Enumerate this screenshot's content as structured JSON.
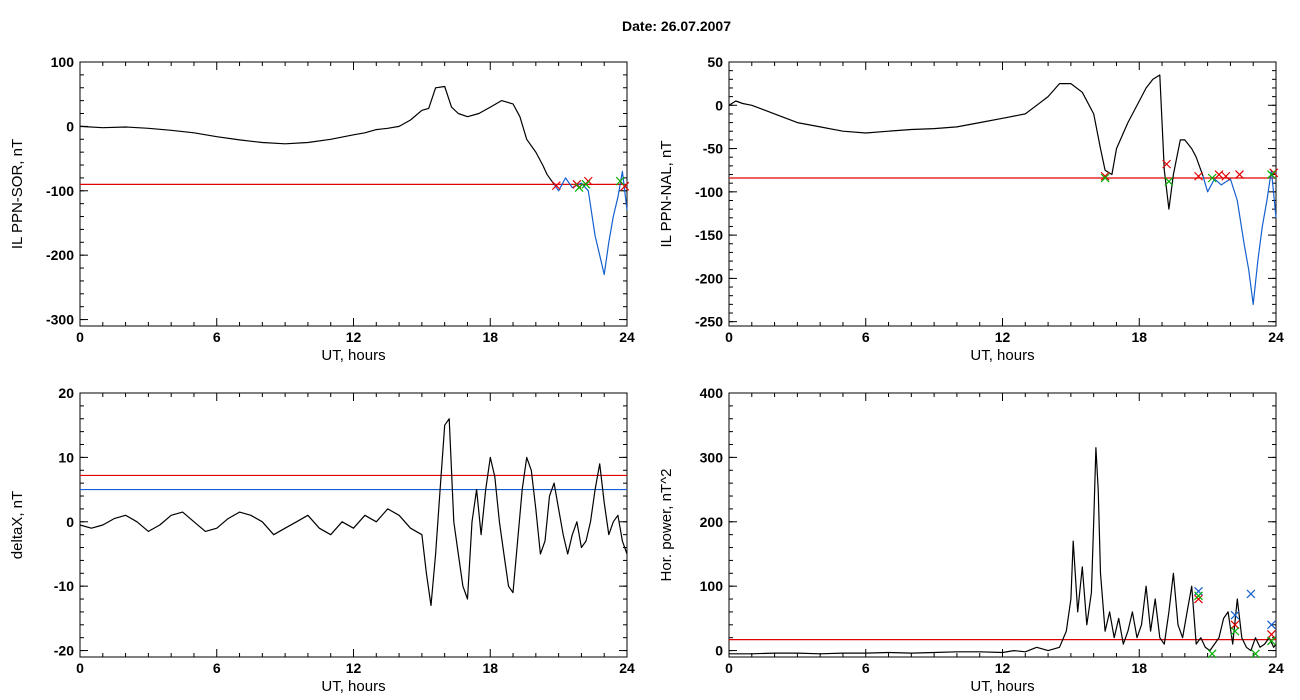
{
  "page": {
    "title": "Date:  26.07.2007"
  },
  "chart_data": [
    {
      "id": "sor",
      "type": "line",
      "xlabel": "UT, hours",
      "ylabel": "IL PPN-SOR, nT",
      "xlim": [
        0,
        24
      ],
      "ylim": [
        -310,
        100
      ],
      "xticks": [
        0,
        6,
        12,
        18,
        24
      ],
      "yticks": [
        -300,
        -200,
        -100,
        0,
        100
      ],
      "hlines": [
        {
          "y": -90,
          "color": "#e00000"
        }
      ],
      "series": [
        {
          "color": "#000000",
          "x": [
            0,
            1,
            2,
            3,
            4,
            5,
            6,
            7,
            8,
            9,
            10,
            11,
            12,
            12.5,
            13,
            13.5,
            14,
            14.5,
            15,
            15.3,
            15.6,
            16,
            16.3,
            16.6,
            17,
            17.5,
            18,
            18.5,
            19,
            19.3,
            19.6,
            20,
            20.3,
            20.5,
            20.8
          ],
          "y": [
            0,
            -2,
            -1,
            -3,
            -6,
            -10,
            -16,
            -21,
            -25,
            -27,
            -25,
            -20,
            -13,
            -10,
            -5,
            -3,
            0,
            10,
            25,
            28,
            60,
            62,
            30,
            20,
            15,
            20,
            30,
            40,
            35,
            15,
            -20,
            -40,
            -60,
            -75,
            -90
          ]
        },
        {
          "color": "#1560d0",
          "x": [
            20.8,
            21,
            21.3,
            21.6,
            22,
            22.3,
            22.6,
            22.8,
            23,
            23.2,
            23.4,
            23.6,
            23.8,
            24
          ],
          "y": [
            -90,
            -100,
            -80,
            -95,
            -88,
            -100,
            -170,
            -200,
            -230,
            -180,
            -140,
            -110,
            -70,
            -130
          ]
        }
      ],
      "markers": [
        {
          "symbol": "x",
          "color": "#e00000",
          "points": [
            [
              20.9,
              -92
            ],
            [
              21.8,
              -90
            ],
            [
              22.3,
              -85
            ],
            [
              23.9,
              -93
            ]
          ]
        },
        {
          "symbol": "x",
          "color": "#00b000",
          "points": [
            [
              21.9,
              -95
            ],
            [
              22.2,
              -90
            ],
            [
              23.7,
              -85
            ]
          ]
        }
      ]
    },
    {
      "id": "nal",
      "type": "line",
      "xlabel": "UT, hours",
      "ylabel": "IL PPN-NAL, nT",
      "xlim": [
        0,
        24
      ],
      "ylim": [
        -255,
        50
      ],
      "xticks": [
        0,
        6,
        12,
        18,
        24
      ],
      "yticks": [
        -250,
        -200,
        -150,
        -100,
        -50,
        0,
        50
      ],
      "hlines": [
        {
          "y": -84,
          "color": "#e00000"
        }
      ],
      "series": [
        {
          "color": "#000000",
          "x": [
            0,
            0.3,
            0.6,
            1,
            1.5,
            2,
            3,
            4,
            5,
            6,
            7,
            8,
            9,
            10,
            11,
            12,
            13,
            13.5,
            14,
            14.5,
            15,
            15.5,
            16,
            16.3,
            16.5,
            16.8,
            17,
            17.5,
            18,
            18.3,
            18.6,
            18.9,
            19.1,
            19.3,
            19.5,
            19.8,
            20,
            20.3,
            20.5,
            20.8
          ],
          "y": [
            0,
            5,
            2,
            0,
            -5,
            -10,
            -20,
            -25,
            -30,
            -32,
            -30,
            -28,
            -27,
            -25,
            -20,
            -15,
            -10,
            0,
            10,
            25,
            25,
            15,
            -10,
            -50,
            -75,
            -80,
            -50,
            -20,
            5,
            20,
            30,
            35,
            -75,
            -120,
            -80,
            -40,
            -40,
            -50,
            -60,
            -82
          ]
        },
        {
          "color": "#1560d0",
          "x": [
            20.8,
            21,
            21.3,
            21.6,
            22,
            22.3,
            22.6,
            22.8,
            23,
            23.2,
            23.4,
            23.6,
            23.8,
            24
          ],
          "y": [
            -82,
            -100,
            -85,
            -92,
            -85,
            -110,
            -160,
            -190,
            -230,
            -180,
            -140,
            -110,
            -75,
            -130
          ]
        }
      ],
      "markers": [
        {
          "symbol": "x",
          "color": "#e00000",
          "points": [
            [
              16.5,
              -82
            ],
            [
              19.2,
              -68
            ],
            [
              20.6,
              -82
            ],
            [
              21.5,
              -80
            ],
            [
              21.8,
              -82
            ],
            [
              22.4,
              -80
            ],
            [
              23.9,
              -78
            ]
          ]
        },
        {
          "symbol": "x",
          "color": "#00b000",
          "points": [
            [
              16.5,
              -84
            ],
            [
              19.3,
              -88
            ],
            [
              21.2,
              -84
            ],
            [
              23.8,
              -80
            ]
          ]
        }
      ]
    },
    {
      "id": "deltax",
      "type": "line",
      "xlabel": "UT, hours",
      "ylabel": "deltaX, nT",
      "xlim": [
        0,
        24
      ],
      "ylim": [
        -21,
        20
      ],
      "xticks": [
        0,
        6,
        12,
        18,
        24
      ],
      "yticks": [
        -20,
        -10,
        0,
        10,
        20
      ],
      "hlines": [
        {
          "y": 7.2,
          "color": "#e00000"
        },
        {
          "y": 5,
          "color": "#1560d0"
        }
      ],
      "series": [
        {
          "color": "#000000",
          "x": [
            0,
            0.5,
            1,
            1.5,
            2,
            2.5,
            3,
            3.5,
            4,
            4.5,
            5,
            5.5,
            6,
            6.5,
            7,
            7.5,
            8,
            8.5,
            9,
            9.5,
            10,
            10.5,
            11,
            11.5,
            12,
            12.5,
            13,
            13.5,
            14,
            14.5,
            15,
            15.2,
            15.4,
            15.6,
            15.8,
            16,
            16.2,
            16.4,
            16.6,
            16.8,
            17,
            17.2,
            17.4,
            17.6,
            17.8,
            18,
            18.2,
            18.4,
            18.6,
            18.8,
            19,
            19.2,
            19.4,
            19.6,
            19.8,
            20,
            20.2,
            20.4,
            20.6,
            20.8,
            21,
            21.2,
            21.4,
            21.6,
            21.8,
            22,
            22.2,
            22.4,
            22.6,
            22.8,
            23,
            23.2,
            23.4,
            23.6,
            23.8,
            24
          ],
          "y": [
            -0.5,
            -1,
            -0.5,
            0.5,
            1,
            0,
            -1.5,
            -0.5,
            1,
            1.5,
            0,
            -1.5,
            -1,
            0.5,
            1.5,
            1,
            0,
            -2,
            -1,
            0,
            1,
            -1,
            -2,
            0,
            -1,
            1,
            0,
            2,
            1,
            -1,
            -2,
            -8,
            -13,
            -5,
            5,
            15,
            16,
            0,
            -5,
            -10,
            -12,
            0,
            5,
            -2,
            5,
            10,
            7,
            0,
            -5,
            -10,
            -11,
            -3,
            5,
            10,
            8,
            2,
            -5,
            -3,
            4,
            6,
            2,
            -2,
            -5,
            -2,
            0,
            -4,
            -3,
            0,
            5,
            9,
            3,
            -2,
            0,
            1,
            -3,
            -5
          ]
        }
      ],
      "markers": []
    },
    {
      "id": "power",
      "type": "line",
      "xlabel": "UT, hours",
      "ylabel": "Hor. power, nT^2",
      "xlim": [
        0,
        24
      ],
      "ylim": [
        -10,
        400
      ],
      "xticks": [
        0,
        6,
        12,
        18,
        24
      ],
      "yticks": [
        0,
        100,
        200,
        300,
        400
      ],
      "hlines": [
        {
          "y": 17,
          "color": "#e00000"
        }
      ],
      "series": [
        {
          "color": "#000000",
          "x": [
            0,
            1,
            2,
            3,
            4,
            5,
            6,
            7,
            8,
            9,
            10,
            11,
            12,
            12.5,
            13,
            13.5,
            14,
            14.5,
            14.8,
            15,
            15.1,
            15.3,
            15.5,
            15.7,
            15.9,
            16,
            16.1,
            16.2,
            16.3,
            16.5,
            16.7,
            16.9,
            17.1,
            17.3,
            17.5,
            17.7,
            17.9,
            18.1,
            18.3,
            18.5,
            18.7,
            18.9,
            19.1,
            19.3,
            19.5,
            19.7,
            19.9,
            20.1,
            20.3,
            20.5,
            20.7,
            20.9,
            21.1,
            21.3,
            21.5,
            21.7,
            21.9,
            22.1,
            22.3,
            22.5,
            22.7,
            22.9,
            23.1,
            23.3,
            23.5,
            23.7,
            23.9,
            24
          ],
          "y": [
            -5,
            -5,
            -4,
            -4,
            -5,
            -4,
            -4,
            -3,
            -4,
            -3,
            -2,
            -2,
            -3,
            0,
            -2,
            5,
            0,
            5,
            30,
            80,
            170,
            60,
            130,
            40,
            90,
            200,
            315,
            250,
            120,
            30,
            60,
            20,
            50,
            10,
            30,
            60,
            20,
            40,
            100,
            30,
            80,
            20,
            10,
            60,
            120,
            40,
            20,
            60,
            100,
            10,
            20,
            5,
            0,
            10,
            20,
            50,
            60,
            10,
            80,
            20,
            5,
            0,
            20,
            5,
            10,
            20,
            5,
            10
          ]
        }
      ],
      "markers": [
        {
          "symbol": "x",
          "color": "#1560d0",
          "points": [
            [
              20.6,
              92
            ],
            [
              22.2,
              55
            ],
            [
              22.9,
              88
            ],
            [
              23.8,
              40
            ]
          ]
        },
        {
          "symbol": "x",
          "color": "#e00000",
          "points": [
            [
              20.6,
              80
            ],
            [
              22.2,
              40
            ],
            [
              23.8,
              25
            ]
          ]
        },
        {
          "symbol": "x",
          "color": "#00b000",
          "points": [
            [
              20.6,
              85
            ],
            [
              22.2,
              30
            ],
            [
              23.8,
              15
            ],
            [
              21.2,
              -5
            ],
            [
              23.1,
              -5
            ]
          ]
        }
      ]
    }
  ]
}
